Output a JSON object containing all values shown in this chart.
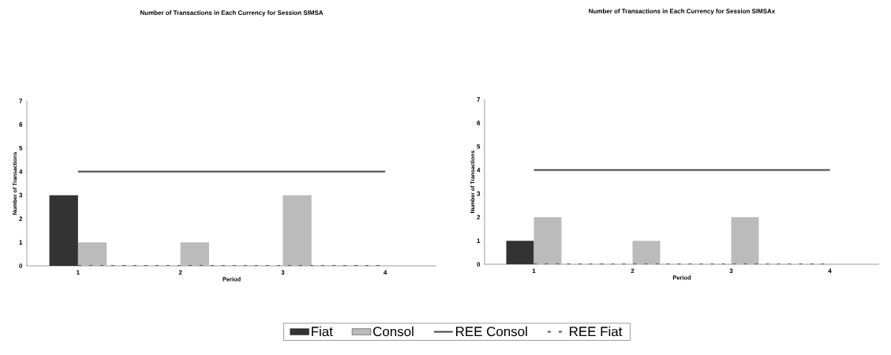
{
  "chart_data": [
    {
      "type": "bar",
      "title": "Number of Transactions in Each Currency for Session SIMSA",
      "xlabel": "Period",
      "ylabel": "Number of Transactions",
      "categories": [
        "1",
        "2",
        "3",
        "4"
      ],
      "ylim": [
        0,
        7
      ],
      "yticks": [
        0,
        1,
        2,
        3,
        4,
        5,
        6,
        7
      ],
      "legend": "bottom",
      "series": [
        {
          "name": "Fiat",
          "color": "#333333",
          "values": [
            3,
            0,
            0,
            0
          ]
        },
        {
          "name": "Consol",
          "color": "#bbbbbb",
          "values": [
            1,
            1,
            3,
            0
          ]
        },
        {
          "name": "REE Consol",
          "type": "line",
          "color": "#444444",
          "values": [
            4,
            4,
            4,
            4
          ]
        },
        {
          "name": "REE Fiat",
          "type": "line",
          "color": "#555555",
          "line_style": "dashed",
          "values": [
            0,
            0,
            0,
            0
          ]
        }
      ]
    },
    {
      "type": "bar",
      "title": "Number of Transactions in Each Currency for Session SIMSAx",
      "xlabel": "Period",
      "ylabel": "Number of Transactions",
      "categories": [
        "1",
        "2",
        "3",
        "4"
      ],
      "ylim": [
        0,
        7
      ],
      "yticks": [
        0,
        1,
        2,
        3,
        4,
        5,
        6,
        7
      ],
      "series": [
        {
          "color": "#333333",
          "values": [
            1,
            0,
            0,
            0
          ]
        },
        {
          "color": "#bbbbbb",
          "values": [
            2,
            1,
            2,
            0
          ]
        },
        {
          "type": "line",
          "color": "#444444",
          "values": [
            4,
            4,
            4,
            4
          ]
        },
        {
          "type": "line",
          "color": "#555555",
          "line_style": "dashed",
          "values": [
            0,
            0,
            0,
            0
          ]
        }
      ]
    }
  ]
}
